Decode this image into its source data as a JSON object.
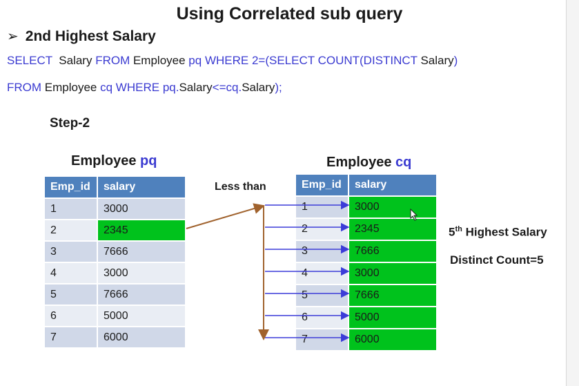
{
  "title": "Using Correlated sub query",
  "bullet": {
    "icon": "bullet-arrow-icon",
    "text": "2nd Highest Salary"
  },
  "sql": {
    "line1": [
      {
        "text": "SELECT",
        "kw": true
      },
      {
        "text": "  Salary ",
        "kw": false
      },
      {
        "text": "FROM",
        "kw": true
      },
      {
        "text": " Employee ",
        "kw": false
      },
      {
        "text": "pq",
        "kw": true
      },
      {
        "text": " ",
        "kw": false
      },
      {
        "text": "WHERE",
        "kw": true
      },
      {
        "text": " ",
        "kw": false
      },
      {
        "text": "2=(SELECT",
        "kw": true
      },
      {
        "text": " ",
        "kw": false
      },
      {
        "text": "COUNT(DISTINCT",
        "kw": true
      },
      {
        "text": " Salary",
        "kw": false
      },
      {
        "text": ")",
        "kw": true
      }
    ],
    "line2": [
      {
        "text": "FROM",
        "kw": true
      },
      {
        "text": " Employee ",
        "kw": false
      },
      {
        "text": "cq",
        "kw": true
      },
      {
        "text": " ",
        "kw": false
      },
      {
        "text": "WHERE",
        "kw": true
      },
      {
        "text": " ",
        "kw": false
      },
      {
        "text": "pq.",
        "kw": true
      },
      {
        "text": "Salary",
        "kw": false
      },
      {
        "text": "<=cq.",
        "kw": true
      },
      {
        "text": "Salary",
        "kw": false
      },
      {
        "text": ");",
        "kw": true
      }
    ]
  },
  "step_label": "Step-2",
  "pq_table": {
    "title_prefix": "Employee ",
    "title_alias": "pq",
    "headers": [
      "Emp_id",
      "salary"
    ],
    "rows": [
      [
        "1",
        "3000"
      ],
      [
        "2",
        "2345"
      ],
      [
        "3",
        "7666"
      ],
      [
        "4",
        "3000"
      ],
      [
        "5",
        "7666"
      ],
      [
        "6",
        "5000"
      ],
      [
        "7",
        "6000"
      ]
    ],
    "highlight_row": 1
  },
  "cq_table": {
    "title_prefix": "Employee ",
    "title_alias": "cq",
    "headers": [
      "Emp_id",
      "salary"
    ],
    "rows": [
      [
        "1",
        "3000"
      ],
      [
        "2",
        "2345"
      ],
      [
        "3",
        "7666"
      ],
      [
        "4",
        "3000"
      ],
      [
        "5",
        "7666"
      ],
      [
        "6",
        "5000"
      ],
      [
        "7",
        "6000"
      ]
    ]
  },
  "less_than_label": "Less than",
  "notes": {
    "highest_num": "5",
    "highest_sup": "th",
    "highest_rest": " Highest Salary",
    "distinct_count": "Distinct Count=5"
  },
  "colors": {
    "keyword_blue": "#3b3bd1",
    "header_blue": "#4f81bd",
    "highlight_green": "#00c21c",
    "connector_brown": "#a0622d",
    "arrow_blue": "#3c3cd8"
  }
}
